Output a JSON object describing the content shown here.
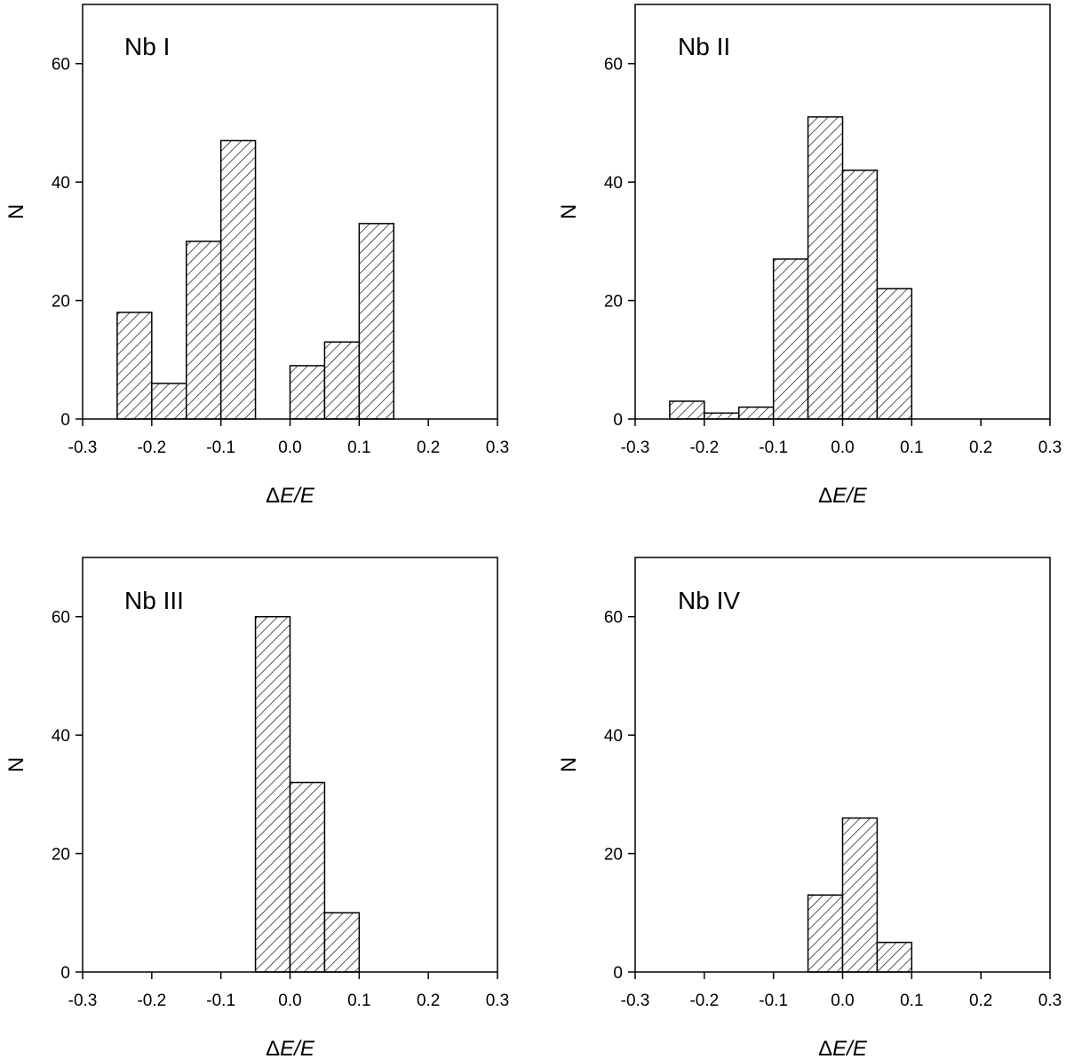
{
  "chart_data": [
    {
      "type": "bar",
      "annotation": "Nb I",
      "xlabel_prefix": "Δ",
      "xlabel_italic": "E/E",
      "ylabel": "N",
      "xlim": [
        -0.3,
        0.3
      ],
      "ylim": [
        0,
        70
      ],
      "xticks": [
        "-0.3",
        "-0.2",
        "-0.1",
        "0.0",
        "0.1",
        "0.2",
        "0.3"
      ],
      "yticks": [
        "0",
        "20",
        "40",
        "60"
      ],
      "bin_width": 0.05,
      "bins": [
        {
          "x": -0.25,
          "n": 18
        },
        {
          "x": -0.2,
          "n": 6
        },
        {
          "x": -0.15,
          "n": 30
        },
        {
          "x": -0.1,
          "n": 47
        },
        {
          "x": 0.0,
          "n": 9
        },
        {
          "x": 0.05,
          "n": 13
        },
        {
          "x": 0.1,
          "n": 33
        }
      ]
    },
    {
      "type": "bar",
      "annotation": "Nb II",
      "xlabel_prefix": "Δ",
      "xlabel_italic": "E/E",
      "ylabel": "N",
      "xlim": [
        -0.3,
        0.3
      ],
      "ylim": [
        0,
        70
      ],
      "xticks": [
        "-0.3",
        "-0.2",
        "-0.1",
        "0.0",
        "0.1",
        "0.2",
        "0.3"
      ],
      "yticks": [
        "0",
        "20",
        "40",
        "60"
      ],
      "bin_width": 0.05,
      "bins": [
        {
          "x": -0.25,
          "n": 3
        },
        {
          "x": -0.2,
          "n": 1
        },
        {
          "x": -0.15,
          "n": 2
        },
        {
          "x": -0.1,
          "n": 27
        },
        {
          "x": -0.05,
          "n": 51
        },
        {
          "x": 0.0,
          "n": 42
        },
        {
          "x": 0.05,
          "n": 22
        }
      ]
    },
    {
      "type": "bar",
      "annotation": "Nb III",
      "xlabel_prefix": "Δ",
      "xlabel_italic": "E/E",
      "ylabel": "N",
      "xlim": [
        -0.3,
        0.3
      ],
      "ylim": [
        0,
        70
      ],
      "xticks": [
        "-0.3",
        "-0.2",
        "-0.1",
        "0.0",
        "0.1",
        "0.2",
        "0.3"
      ],
      "yticks": [
        "0",
        "20",
        "40",
        "60"
      ],
      "bin_width": 0.05,
      "bins": [
        {
          "x": -0.05,
          "n": 60
        },
        {
          "x": 0.0,
          "n": 32
        },
        {
          "x": 0.05,
          "n": 10
        }
      ]
    },
    {
      "type": "bar",
      "annotation": "Nb IV",
      "xlabel_prefix": "Δ",
      "xlabel_italic": "E/E",
      "ylabel": "N",
      "xlim": [
        -0.3,
        0.3
      ],
      "ylim": [
        0,
        70
      ],
      "xticks": [
        "-0.3",
        "-0.2",
        "-0.1",
        "0.0",
        "0.1",
        "0.2",
        "0.3"
      ],
      "yticks": [
        "0",
        "20",
        "40",
        "60"
      ],
      "bin_width": 0.05,
      "bins": [
        {
          "x": -0.05,
          "n": 13
        },
        {
          "x": 0.0,
          "n": 26
        },
        {
          "x": 0.05,
          "n": 5
        }
      ]
    }
  ],
  "style": {
    "bar_fill": "#ffffff",
    "hatch_pattern": "diagonal-hatch",
    "line_color": "#000000"
  }
}
